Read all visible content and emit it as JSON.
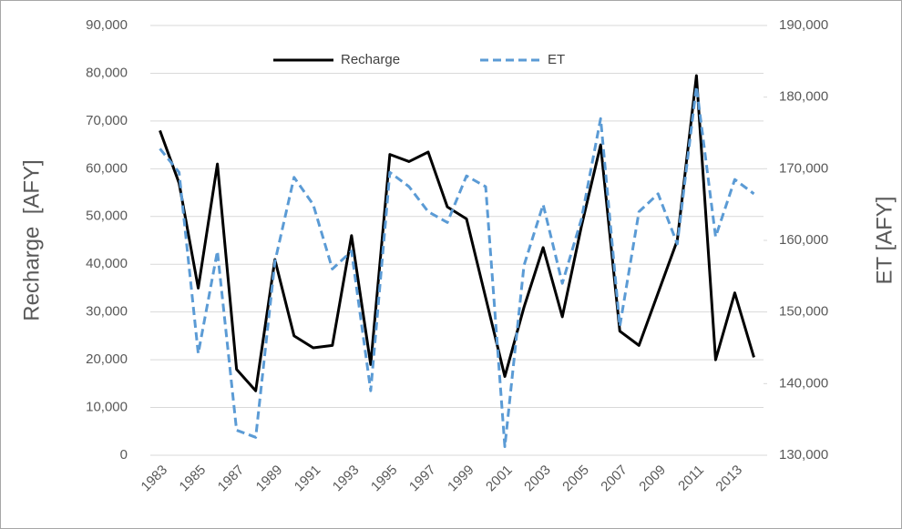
{
  "chart_data": {
    "type": "line",
    "categories": [
      "1983",
      null,
      "1985",
      null,
      "1987",
      null,
      "1989",
      null,
      "1991",
      null,
      "1993",
      null,
      "1995",
      null,
      "1997",
      null,
      "1999",
      null,
      "2001",
      null,
      "2003",
      null,
      "2005",
      null,
      "2007",
      null,
      "2009",
      null,
      "2011",
      null,
      "2013",
      null
    ],
    "y_label": "Recharge  [AFY]",
    "y2_label": "ET [AFY]",
    "ylim": [
      0,
      90000
    ],
    "yticks": [
      0,
      {
        "value": 10000,
        "label": "10,000"
      },
      {
        "value": 20000,
        "label": "20,000"
      },
      {
        "value": 30000,
        "label": "30,000"
      },
      {
        "value": 40000,
        "label": "40,000"
      },
      {
        "value": 50000,
        "label": "50,000"
      },
      {
        "value": 60000,
        "label": "60,000"
      },
      {
        "value": 70000,
        "label": "70,000"
      },
      {
        "value": 80000,
        "label": "80,000"
      },
      {
        "value": 90000,
        "label": "90,000"
      }
    ],
    "y2lim": [
      130000,
      190000
    ],
    "y2ticks": [
      {
        "value": 130000,
        "label": "130,000"
      },
      {
        "value": 140000,
        "label": "140,000"
      },
      {
        "value": 150000,
        "label": "150,000"
      },
      {
        "value": 160000,
        "label": "160,000"
      },
      {
        "value": 170000,
        "label": "170,000"
      },
      {
        "value": 180000,
        "label": "180,000"
      },
      {
        "value": 190000,
        "label": "190,000"
      }
    ],
    "grid": true,
    "legend": "top",
    "series": [
      {
        "name": "Recharge",
        "color": "#000000",
        "line_style": "solid",
        "values": [
          68000,
          57000,
          35000,
          61000,
          18000,
          13500,
          41000,
          25000,
          22500,
          23000,
          46000,
          19000,
          63000,
          61500,
          63500,
          52000,
          49500,
          33000,
          16500,
          31000,
          43500,
          29000,
          48000,
          65000,
          26000,
          23000,
          34000,
          45000,
          79500,
          20000,
          34000,
          20500
        ]
      },
      {
        "name": "ET",
        "color": "#5b9bd5",
        "line_style": "dashed",
        "axis": "y2",
        "values": [
          172800,
          169500,
          144200,
          158500,
          133500,
          132500,
          157000,
          168800,
          165000,
          156000,
          158500,
          139000,
          169500,
          167500,
          164000,
          162500,
          169000,
          167500,
          131200,
          156500,
          165000,
          154000,
          163000,
          177000,
          148000,
          164000,
          166500,
          159500,
          181500,
          160500,
          168500,
          166500
        ]
      }
    ]
  }
}
